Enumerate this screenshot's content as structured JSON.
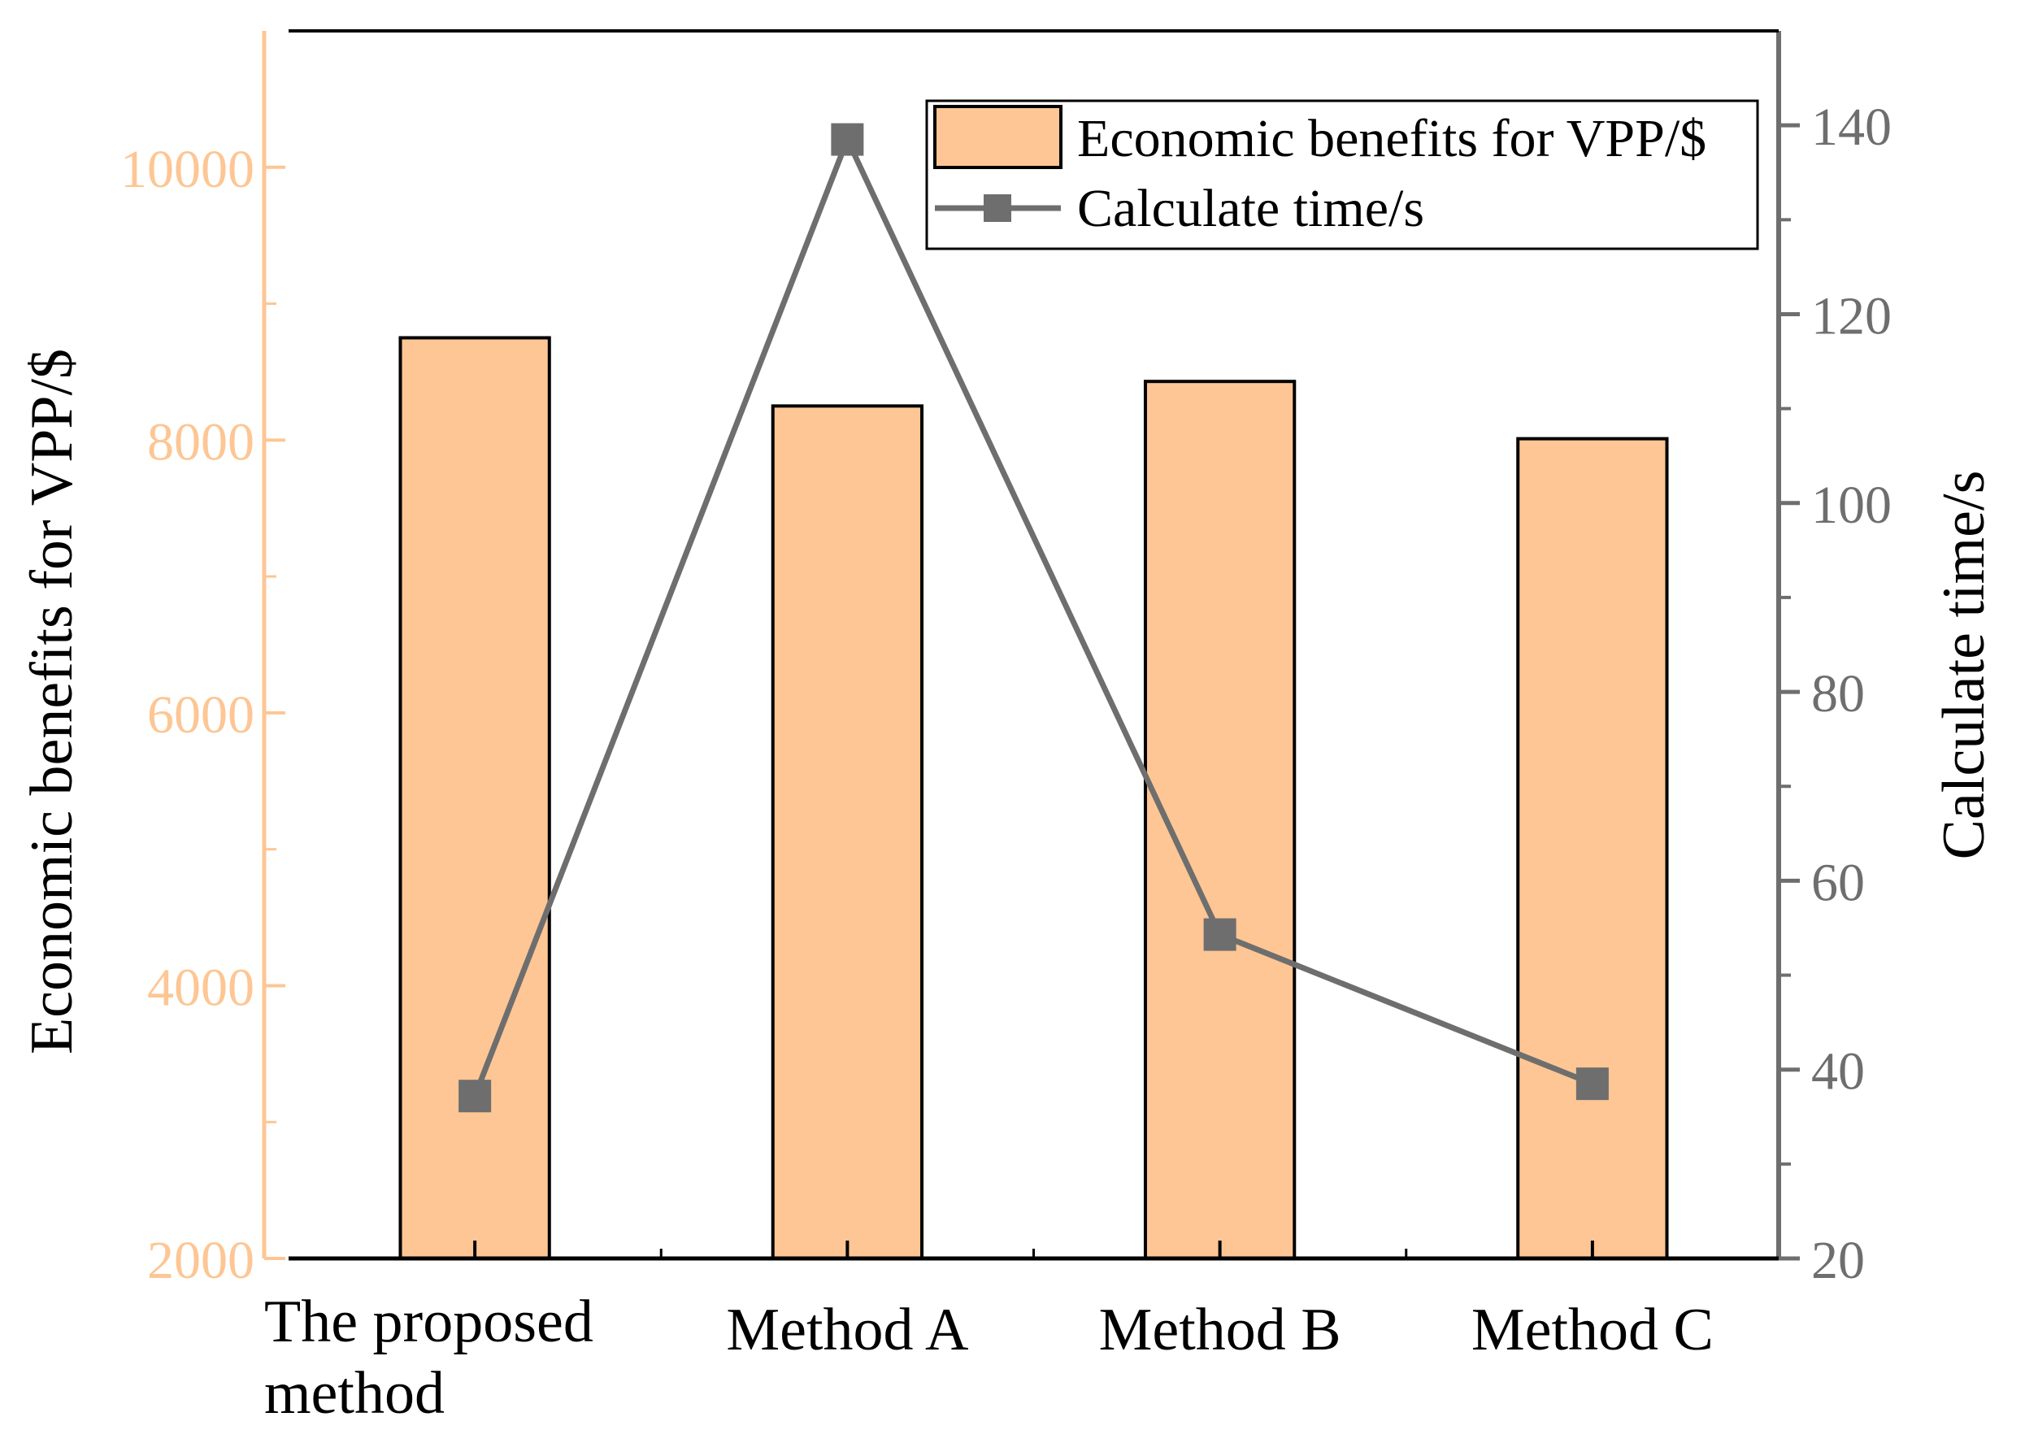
{
  "chart_data": {
    "type": "bar",
    "categories": [
      "The proposed method",
      "Method A",
      "Method B",
      "Method C"
    ],
    "category_lines": [
      [
        "The proposed",
        "method"
      ],
      [
        "Method A"
      ],
      [
        "Method B"
      ],
      [
        "Method C"
      ]
    ],
    "series": [
      {
        "name": "Economic benefits for VPP/$",
        "kind": "bar",
        "axis": "left",
        "values": [
          8750,
          8250,
          8430,
          8010
        ]
      },
      {
        "name": "Calculate time/s",
        "kind": "line",
        "axis": "right",
        "values": [
          37.2,
          138.5,
          54.3,
          38.5
        ]
      }
    ],
    "left_axis": {
      "label": "Economic benefits for VPP/$",
      "ylim": [
        2000,
        11000
      ],
      "ticks": [
        "2000",
        "4000",
        "6000",
        "8000",
        "10000"
      ],
      "tick_values": [
        2000,
        4000,
        6000,
        8000,
        10000
      ],
      "minor_tick_values": [
        3000,
        5000,
        7000,
        9000
      ]
    },
    "right_axis": {
      "label": "Calculate time/s",
      "ylim": [
        20,
        150
      ],
      "ticks": [
        "20",
        "40",
        "60",
        "80",
        "100",
        "120",
        "140"
      ],
      "tick_values": [
        20,
        40,
        60,
        80,
        100,
        120,
        140
      ],
      "minor_tick_values": [
        30,
        50,
        70,
        90,
        110,
        130
      ]
    },
    "legend": {
      "position": "top-right",
      "entries": [
        "Economic benefits for VPP/$",
        "Calculate time/s"
      ]
    },
    "colors": {
      "bar_fill": "#FDC694",
      "bar_stroke": "#000000",
      "left_axis": "#FDC694",
      "line": "#6E6E6E",
      "right_axis": "#6E6E6E",
      "frame": "#000000"
    }
  }
}
